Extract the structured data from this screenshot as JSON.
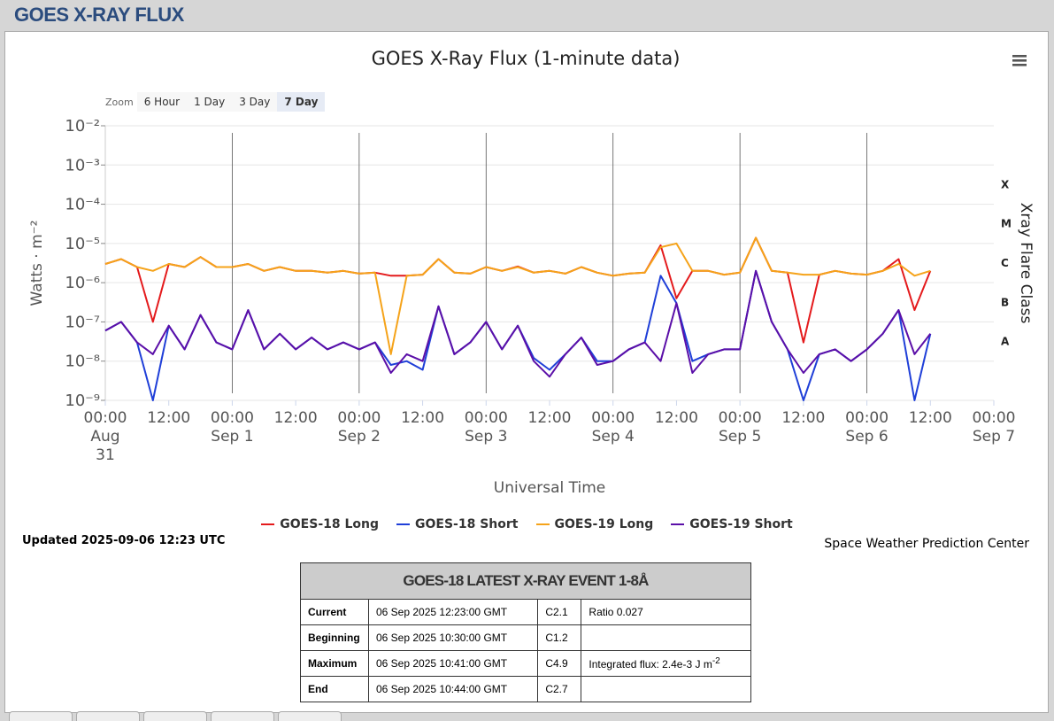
{
  "header": {
    "title": "GOES X-RAY FLUX"
  },
  "zoom": {
    "label": "Zoom",
    "buttons": [
      "6 Hour",
      "1 Day",
      "3 Day",
      "7 Day"
    ],
    "selected": "7 Day"
  },
  "chart_data": {
    "type": "line",
    "title": "GOES X-Ray Flux (1-minute data)",
    "x_label": "Universal Time",
    "y_label": "Watts · m⁻²",
    "y2_label": "Xray Flare Class",
    "log_scale": true,
    "grid": true,
    "xlim": [
      "Aug 31 00:00",
      "Sep 7 00:00"
    ],
    "xticks": [
      {
        "value": "Aug 31 00:00",
        "label": "00:00 Aug 31"
      },
      {
        "value": "Aug 31 12:00",
        "label": "12:00"
      },
      {
        "value": "Sep 1 00:00",
        "label": "00:00 Sep 1"
      },
      {
        "value": "Sep 1 12:00",
        "label": "12:00"
      },
      {
        "value": "Sep 2 00:00",
        "label": "00:00 Sep 2"
      },
      {
        "value": "Sep 2 12:00",
        "label": "12:00"
      },
      {
        "value": "Sep 3 00:00",
        "label": "00:00 Sep 3"
      },
      {
        "value": "Sep 3 12:00",
        "label": "12:00"
      },
      {
        "value": "Sep 4 00:00",
        "label": "00:00 Sep 4"
      },
      {
        "value": "Sep 4 12:00",
        "label": "12:00"
      },
      {
        "value": "Sep 5 00:00",
        "label": "00:00 Sep 5"
      },
      {
        "value": "Sep 5 12:00",
        "label": "12:00"
      },
      {
        "value": "Sep 6 00:00",
        "label": "00:00 Sep 6"
      },
      {
        "value": "Sep 6 12:00",
        "label": "12:00"
      },
      {
        "value": "Sep 7 00:00",
        "label": "00:00 Sep 7"
      }
    ],
    "ylim": [
      1e-09,
      0.01
    ],
    "yticks": [
      {
        "value": 1e-09,
        "label": "10⁻⁹"
      },
      {
        "value": 1e-08,
        "label": "10⁻⁸"
      },
      {
        "value": 1e-07,
        "label": "10⁻⁷"
      },
      {
        "value": 1e-06,
        "label": "10⁻⁶"
      },
      {
        "value": 1e-05,
        "label": "10⁻⁵"
      },
      {
        "value": 0.0001,
        "label": "10⁻⁴"
      },
      {
        "value": 0.001,
        "label": "10⁻³"
      },
      {
        "value": 0.01,
        "label": "10⁻²"
      }
    ],
    "flare_classes": [
      {
        "label": "A",
        "value": 1e-08
      },
      {
        "label": "B",
        "value": 1e-07
      },
      {
        "label": "C",
        "value": 1e-06
      },
      {
        "label": "M",
        "value": 1e-05
      },
      {
        "label": "X",
        "value": 0.0001
      }
    ],
    "x": [
      "Aug 31 00:00",
      "Aug 31 03:00",
      "Aug 31 06:00",
      "Aug 31 09:00",
      "Aug 31 12:00",
      "Aug 31 15:00",
      "Aug 31 18:00",
      "Aug 31 21:00",
      "Sep 1 00:00",
      "Sep 1 03:00",
      "Sep 1 06:00",
      "Sep 1 09:00",
      "Sep 1 12:00",
      "Sep 1 15:00",
      "Sep 1 18:00",
      "Sep 1 21:00",
      "Sep 2 00:00",
      "Sep 2 03:00",
      "Sep 2 06:00",
      "Sep 2 09:00",
      "Sep 2 12:00",
      "Sep 2 15:00",
      "Sep 2 18:00",
      "Sep 2 21:00",
      "Sep 3 00:00",
      "Sep 3 03:00",
      "Sep 3 06:00",
      "Sep 3 09:00",
      "Sep 3 12:00",
      "Sep 3 15:00",
      "Sep 3 18:00",
      "Sep 3 21:00",
      "Sep 4 00:00",
      "Sep 4 03:00",
      "Sep 4 06:00",
      "Sep 4 09:00",
      "Sep 4 12:00",
      "Sep 4 15:00",
      "Sep 4 18:00",
      "Sep 4 21:00",
      "Sep 5 00:00",
      "Sep 5 03:00",
      "Sep 5 06:00",
      "Sep 5 09:00",
      "Sep 5 12:00",
      "Sep 5 15:00",
      "Sep 5 18:00",
      "Sep 5 21:00",
      "Sep 6 00:00",
      "Sep 6 03:00",
      "Sep 6 06:00",
      "Sep 6 09:00",
      "Sep 6 12:00"
    ],
    "series": [
      {
        "name": "GOES-18 Long",
        "color": "#e41a1c",
        "values": [
          3e-06,
          4e-06,
          2.5e-06,
          1e-07,
          3e-06,
          2.5e-06,
          4.5e-06,
          2.5e-06,
          2.5e-06,
          3e-06,
          2e-06,
          2.5e-06,
          2e-06,
          2e-06,
          1.8e-06,
          2e-06,
          1.7e-06,
          1.8e-06,
          1.5e-06,
          1.5e-06,
          1.6e-06,
          4e-06,
          1.8e-06,
          1.7e-06,
          2.5e-06,
          2e-06,
          2.6e-06,
          1.8e-06,
          2e-06,
          1.7e-06,
          2.5e-06,
          1.8e-06,
          1.5e-06,
          1.7e-06,
          1.8e-06,
          9e-06,
          4e-07,
          2e-06,
          2e-06,
          1.6e-06,
          1.8e-06,
          1.4e-05,
          2e-06,
          1.8e-06,
          3e-08,
          1.6e-06,
          2e-06,
          1.7e-06,
          1.6e-06,
          2e-06,
          4e-06,
          2e-07,
          2e-06
        ]
      },
      {
        "name": "GOES-18 Short",
        "color": "#1f3fd8",
        "values": [
          6e-08,
          1e-07,
          3e-08,
          1e-09,
          8e-08,
          2e-08,
          1.5e-07,
          3e-08,
          2e-08,
          2e-07,
          2e-08,
          5e-08,
          2e-08,
          4e-08,
          2e-08,
          3e-08,
          2e-08,
          3e-08,
          8e-09,
          1e-08,
          6e-09,
          2.5e-07,
          1.5e-08,
          3e-08,
          1e-07,
          2e-08,
          8e-08,
          1.2e-08,
          6e-09,
          1.5e-08,
          4e-08,
          1e-08,
          1e-08,
          2e-08,
          3e-08,
          1.5e-06,
          3e-07,
          1e-08,
          1.5e-08,
          2e-08,
          2e-08,
          2e-06,
          1e-07,
          2e-08,
          1e-09,
          1.5e-08,
          2e-08,
          1e-08,
          2e-08,
          5e-08,
          2e-07,
          1e-09,
          5e-08
        ]
      },
      {
        "name": "GOES-19 Long",
        "color": "#f5a31a",
        "values": [
          3e-06,
          4e-06,
          2.5e-06,
          2e-06,
          3e-06,
          2.5e-06,
          4.5e-06,
          2.5e-06,
          2.5e-06,
          3e-06,
          2e-06,
          2.5e-06,
          2e-06,
          2e-06,
          1.8e-06,
          2e-06,
          1.7e-06,
          1.8e-06,
          1.5e-08,
          1.5e-06,
          1.6e-06,
          4e-06,
          1.8e-06,
          1.7e-06,
          2.5e-06,
          2e-06,
          2.5e-06,
          1.8e-06,
          2e-06,
          1.7e-06,
          2.5e-06,
          1.8e-06,
          1.5e-06,
          1.7e-06,
          1.8e-06,
          8e-06,
          1e-05,
          2e-06,
          2e-06,
          1.6e-06,
          1.8e-06,
          1.4e-05,
          2e-06,
          1.8e-06,
          1.6e-06,
          1.6e-06,
          2e-06,
          1.7e-06,
          1.6e-06,
          2e-06,
          3e-06,
          1.5e-06,
          2e-06
        ]
      },
      {
        "name": "GOES-19 Short",
        "color": "#5b0fa8",
        "values": [
          6e-08,
          1e-07,
          3e-08,
          1.5e-08,
          8e-08,
          2e-08,
          1.5e-07,
          3e-08,
          2e-08,
          2e-07,
          2e-08,
          5e-08,
          2e-08,
          4e-08,
          2e-08,
          3e-08,
          2e-08,
          3e-08,
          5e-09,
          1.5e-08,
          1e-08,
          2.5e-07,
          1.5e-08,
          3e-08,
          1e-07,
          2e-08,
          8e-08,
          1e-08,
          4e-09,
          1.5e-08,
          4e-08,
          8e-09,
          1e-08,
          2e-08,
          3e-08,
          1e-08,
          3e-07,
          5e-09,
          1.5e-08,
          2e-08,
          2e-08,
          2e-06,
          1e-07,
          2e-08,
          5e-09,
          1.5e-08,
          2e-08,
          1e-08,
          2e-08,
          5e-08,
          2e-07,
          1.5e-08,
          5e-08
        ]
      }
    ]
  },
  "updated": "Updated 2025-09-06 12:23 UTC",
  "credits": "Space Weather Prediction Center",
  "table": {
    "title": "GOES-18 LATEST X-RAY EVENT 1-8Å",
    "rows": [
      [
        "Current",
        "06 Sep 2025 12:23:00 GMT",
        "C2.1",
        "Ratio 0.027"
      ],
      [
        "Beginning",
        "06 Sep 2025 10:30:00 GMT",
        "C1.2"
      ],
      [
        "Maximum",
        "06 Sep 2025 10:41:00 GMT",
        "C4.9",
        {
          "text": "Integrated flux: 2.4e-3 J m",
          "sup": "-2"
        }
      ],
      [
        "End",
        "06 Sep 2025 10:44:00 GMT",
        "C2.7"
      ]
    ]
  }
}
